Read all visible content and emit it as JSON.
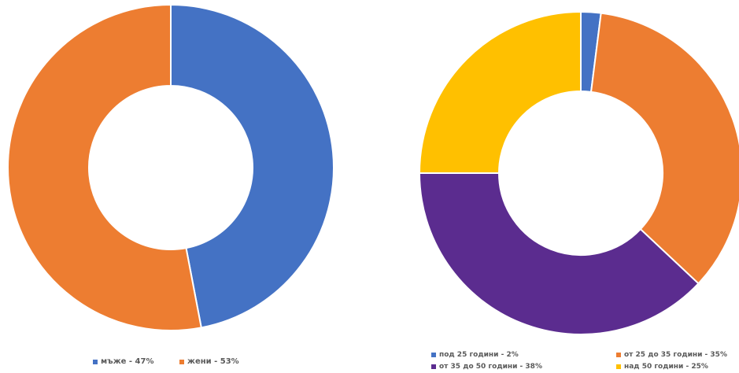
{
  "chart_data": [
    {
      "type": "pie",
      "donut": true,
      "categories": [
        "мъже",
        "жени"
      ],
      "values": [
        47,
        53
      ],
      "colors": [
        "#4472c4",
        "#ed7d31"
      ],
      "legend": [
        "мъже - 47%",
        "жени - 53%"
      ],
      "legend_placement": "bottom"
    },
    {
      "type": "pie",
      "donut": true,
      "categories": [
        "под 25 години",
        "от 25 до 35 години",
        "от 35 до 50 години",
        "над 50 години"
      ],
      "values": [
        2,
        35,
        38,
        25
      ],
      "colors": [
        "#4472c4",
        "#ed7d31",
        "#5b2c8f",
        "#ffc000"
      ],
      "legend": [
        "под 25 години - 2%",
        "от 25 до 35 години - 35%",
        "от 35 до 50 години - 38%",
        "над 50 години - 25%"
      ],
      "legend_placement": "bottom"
    }
  ]
}
